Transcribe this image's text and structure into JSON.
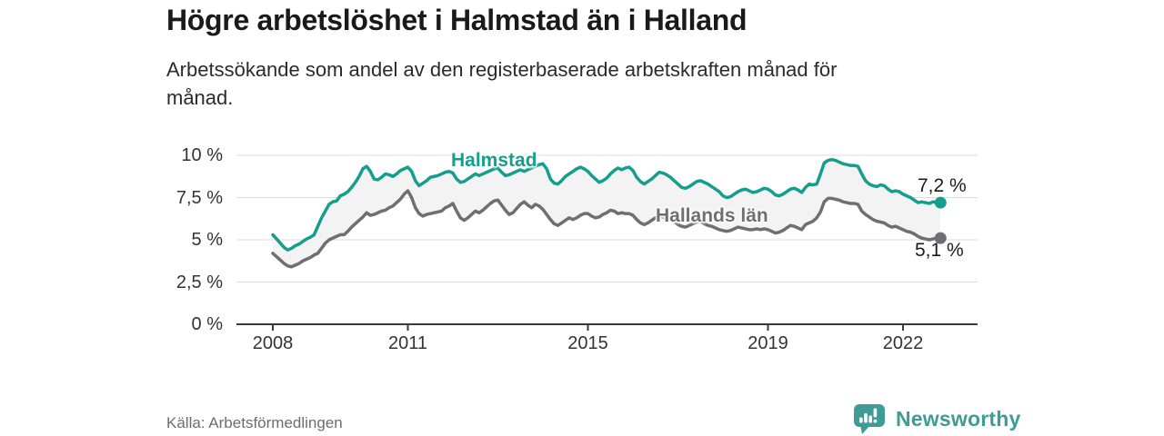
{
  "header": {
    "title": "Högre arbetslöshet i Halmstad än i Halland",
    "subtitle": "Arbetssökande som andel av den registerbaserade arbetskraften månad för\nmånad."
  },
  "footer": {
    "source": "Källa: Arbetsförmedlingen",
    "brand": "Newsworthy",
    "brand_color": "#3e9b95",
    "logo_icon": "bar-chart-speech-bubble"
  },
  "chart_data": {
    "type": "line",
    "unit": "%",
    "frequency": "monthly",
    "x_start": "2008-01",
    "x_end": "2022-11",
    "ylim": [
      0,
      10
    ],
    "grid": true,
    "legend_position": "inline-labels",
    "colors": {
      "grid": "#dcdcdc",
      "axis": "#3a3a3a",
      "band": "#f3f3f3",
      "tick_text": "#333333"
    },
    "x_ticks": [
      {
        "pos": 2008,
        "label": "2008"
      },
      {
        "pos": 2011,
        "label": "2011"
      },
      {
        "pos": 2015,
        "label": "2015"
      },
      {
        "pos": 2019,
        "label": "2019"
      },
      {
        "pos": 2022,
        "label": "2022"
      }
    ],
    "y_ticks": [
      {
        "value": 0,
        "label": "0 %"
      },
      {
        "value": 2.5,
        "label": "2,5 %"
      },
      {
        "value": 5,
        "label": "5 %"
      },
      {
        "value": 7.5,
        "label": "7,5 %"
      },
      {
        "value": 10,
        "label": "10 %"
      }
    ],
    "series": [
      {
        "name": "Halmstad",
        "color": "#169e8c",
        "end_label": "7,2 %",
        "last_value": 7.2,
        "values": [
          5.3,
          5.05,
          4.8,
          4.55,
          4.4,
          4.5,
          4.65,
          4.75,
          4.9,
          5.05,
          5.15,
          5.3,
          5.8,
          6.3,
          6.7,
          7.1,
          7.25,
          7.3,
          7.6,
          7.7,
          7.85,
          8.1,
          8.4,
          8.75,
          9.2,
          9.35,
          9.05,
          8.6,
          8.55,
          8.7,
          8.9,
          8.85,
          8.75,
          8.9,
          9.1,
          9.2,
          9.3,
          9.05,
          8.5,
          8.2,
          8.35,
          8.5,
          8.7,
          8.75,
          8.8,
          8.9,
          9.0,
          9.05,
          8.95,
          8.6,
          8.4,
          8.45,
          8.6,
          8.75,
          8.9,
          8.8,
          8.9,
          9.0,
          9.1,
          9.2,
          9.25,
          9.0,
          8.8,
          8.85,
          8.95,
          9.05,
          9.15,
          9.05,
          9.15,
          9.25,
          9.35,
          9.45,
          9.5,
          9.2,
          8.6,
          8.35,
          8.3,
          8.5,
          8.75,
          8.9,
          9.05,
          9.2,
          9.3,
          9.2,
          9.05,
          8.8,
          8.6,
          8.4,
          8.5,
          8.65,
          8.9,
          9.1,
          9.25,
          9.15,
          9.25,
          9.3,
          9.1,
          8.7,
          8.45,
          8.3,
          8.45,
          8.6,
          8.8,
          9.0,
          8.95,
          8.85,
          8.7,
          8.5,
          8.3,
          8.1,
          8.05,
          8.15,
          8.3,
          8.45,
          8.5,
          8.4,
          8.3,
          8.15,
          8.0,
          7.85,
          7.6,
          7.5,
          7.55,
          7.7,
          7.85,
          7.95,
          8.0,
          7.9,
          7.8,
          7.85,
          7.95,
          8.05,
          8.0,
          7.85,
          7.65,
          7.6,
          7.7,
          7.85,
          8.0,
          8.05,
          7.95,
          7.8,
          8.1,
          8.3,
          8.25,
          8.3,
          8.9,
          9.55,
          9.7,
          9.75,
          9.7,
          9.6,
          9.5,
          9.45,
          9.4,
          9.4,
          9.35,
          8.9,
          8.5,
          8.3,
          8.2,
          8.15,
          8.25,
          8.2,
          8.0,
          7.85,
          7.9,
          7.85,
          7.7,
          7.6,
          7.5,
          7.35,
          7.2,
          7.25,
          7.2,
          7.15,
          7.25,
          7.2,
          7.2
        ]
      },
      {
        "name": "Hallands län",
        "color": "#6f6f71",
        "end_label": "5,1 %",
        "last_value": 5.1,
        "values": [
          4.2,
          4.0,
          3.8,
          3.6,
          3.45,
          3.4,
          3.5,
          3.6,
          3.75,
          3.85,
          3.95,
          4.1,
          4.2,
          4.5,
          4.8,
          5.0,
          5.1,
          5.2,
          5.3,
          5.3,
          5.5,
          5.75,
          5.95,
          6.15,
          6.35,
          6.6,
          6.45,
          6.5,
          6.6,
          6.7,
          6.75,
          6.9,
          7.0,
          7.2,
          7.4,
          7.7,
          7.9,
          7.5,
          6.9,
          6.55,
          6.4,
          6.5,
          6.55,
          6.6,
          6.65,
          6.7,
          6.9,
          7.0,
          7.15,
          6.7,
          6.3,
          6.15,
          6.3,
          6.5,
          6.7,
          6.6,
          6.75,
          6.95,
          7.15,
          7.3,
          7.35,
          7.05,
          6.75,
          6.5,
          6.6,
          6.85,
          7.1,
          7.25,
          7.05,
          6.9,
          7.1,
          7.0,
          6.8,
          6.5,
          6.2,
          5.95,
          5.85,
          6.0,
          6.15,
          6.3,
          6.2,
          6.3,
          6.45,
          6.55,
          6.55,
          6.4,
          6.3,
          6.35,
          6.5,
          6.6,
          6.75,
          6.7,
          6.55,
          6.6,
          6.55,
          6.55,
          6.45,
          6.2,
          6.0,
          5.9,
          6.0,
          6.15,
          6.3,
          6.4,
          6.35,
          6.25,
          6.2,
          6.1,
          5.9,
          5.8,
          5.75,
          5.85,
          5.95,
          6.05,
          6.1,
          5.95,
          5.85,
          5.8,
          5.7,
          5.6,
          5.55,
          5.5,
          5.55,
          5.65,
          5.75,
          5.7,
          5.65,
          5.6,
          5.6,
          5.65,
          5.6,
          5.65,
          5.6,
          5.5,
          5.4,
          5.45,
          5.55,
          5.7,
          5.85,
          5.8,
          5.7,
          5.6,
          5.9,
          6.0,
          6.1,
          6.3,
          6.65,
          7.25,
          7.45,
          7.45,
          7.4,
          7.35,
          7.25,
          7.2,
          7.15,
          7.15,
          7.1,
          6.7,
          6.5,
          6.35,
          6.2,
          6.1,
          6.05,
          6.0,
          5.85,
          5.75,
          5.8,
          5.7,
          5.6,
          5.5,
          5.45,
          5.35,
          5.2,
          5.1,
          5.05,
          5.0,
          5.05,
          5.1,
          5.1
        ]
      }
    ]
  }
}
